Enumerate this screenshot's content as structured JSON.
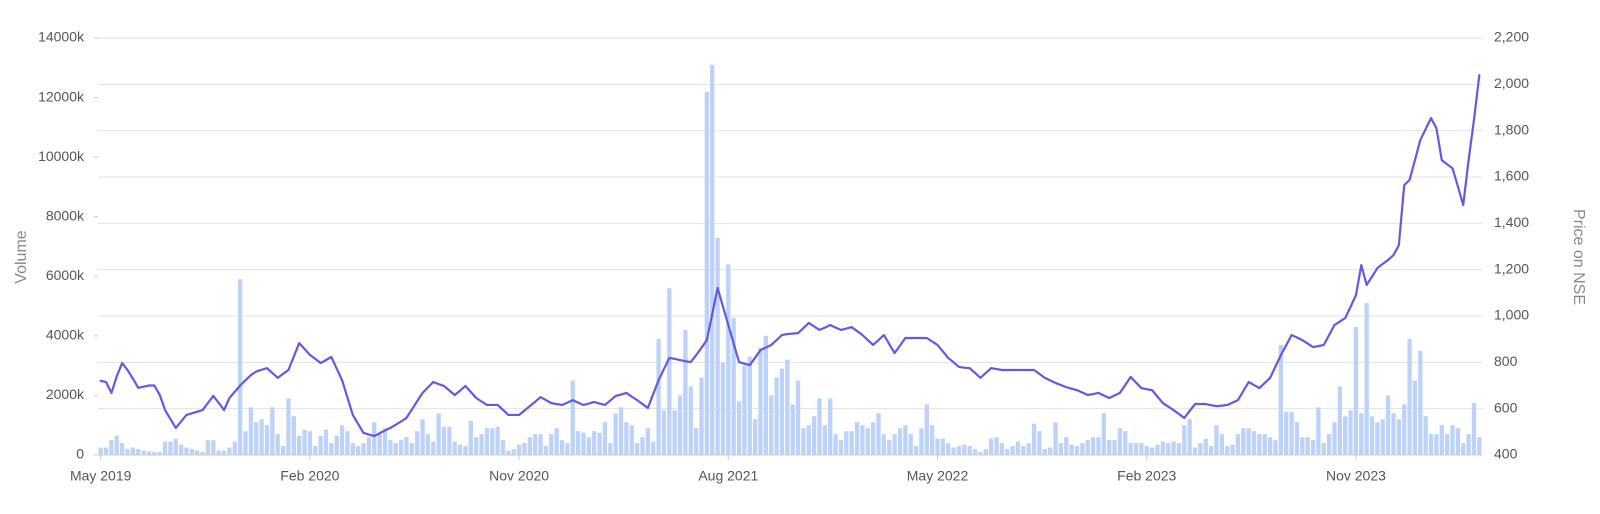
{
  "chart_data": {
    "type": "bar",
    "ylabel": "Volume",
    "y2label": "Price on NSE",
    "ylim": [
      0,
      14000
    ],
    "yticks": [
      0,
      {
        "value": 2000,
        "label": "2000k"
      },
      {
        "value": 4000,
        "label": "4000k"
      },
      {
        "value": 6000,
        "label": "6000k"
      },
      {
        "value": 8000,
        "label": "8000k"
      },
      {
        "value": 10000,
        "label": "10000k"
      },
      {
        "value": 12000,
        "label": "12000k"
      },
      {
        "value": 14000,
        "label": "14000k"
      }
    ],
    "y2lim": [
      400,
      2200
    ],
    "y2ticks": [
      400,
      600,
      800,
      {
        "value": 1000,
        "label": "1,000"
      },
      {
        "value": 1200,
        "label": "1,200"
      },
      {
        "value": 1400,
        "label": "1,400"
      },
      {
        "value": 1600,
        "label": "1,600"
      },
      {
        "value": 1800,
        "label": "1,800"
      },
      {
        "value": 2000,
        "label": "2,000"
      },
      {
        "value": 2200,
        "label": "2,200"
      }
    ],
    "grid": true,
    "categories": [
      "May 2019",
      null,
      null,
      null,
      null,
      null,
      null,
      null,
      null,
      null,
      null,
      null,
      null,
      null,
      null,
      null,
      null,
      null,
      null,
      null,
      null,
      null,
      null,
      null,
      null,
      null,
      null,
      null,
      null,
      null,
      null,
      null,
      null,
      null,
      null,
      null,
      null,
      null,
      null,
      "Feb 2020",
      null,
      null,
      null,
      null,
      null,
      null,
      null,
      null,
      null,
      null,
      null,
      null,
      null,
      null,
      null,
      null,
      null,
      null,
      null,
      null,
      null,
      null,
      null,
      null,
      null,
      null,
      null,
      null,
      null,
      null,
      null,
      null,
      null,
      null,
      null,
      null,
      null,
      null,
      "Nov 2020",
      null,
      null,
      null,
      null,
      null,
      null,
      null,
      null,
      null,
      null,
      null,
      null,
      null,
      null,
      null,
      null,
      null,
      null,
      null,
      null,
      null,
      null,
      null,
      null,
      null,
      null,
      null,
      null,
      null,
      null,
      null,
      null,
      null,
      null,
      null,
      null,
      null,
      null,
      "Aug 2021",
      null,
      null,
      null,
      null,
      null,
      null,
      null,
      null,
      null,
      null,
      null,
      null,
      null,
      null,
      null,
      null,
      null,
      null,
      null,
      null,
      null,
      null,
      null,
      null,
      null,
      null,
      null,
      null,
      null,
      null,
      null,
      null,
      null,
      null,
      null,
      null,
      null,
      null,
      "May 2022",
      null,
      null,
      null,
      null,
      null,
      null,
      null,
      null,
      null,
      null,
      null,
      null,
      null,
      null,
      null,
      null,
      null,
      null,
      null,
      null,
      null,
      null,
      null,
      null,
      null,
      null,
      null,
      null,
      null,
      null,
      null,
      null,
      null,
      null,
      null,
      null,
      null,
      null,
      "Feb 2023",
      null,
      null,
      null,
      null,
      null,
      null,
      null,
      null,
      null,
      null,
      null,
      null,
      null,
      null,
      null,
      null,
      null,
      null,
      null,
      null,
      null,
      null,
      null,
      null,
      null,
      null,
      null,
      null,
      null,
      null,
      null,
      null,
      null,
      null,
      null,
      null,
      null,
      null,
      "Nov 2023",
      null,
      null,
      null,
      null,
      null,
      null,
      null,
      null,
      null,
      null,
      null,
      null,
      null,
      null,
      null,
      null,
      null,
      null,
      null,
      null,
      null,
      null,
      null
    ],
    "series": [
      {
        "type": "bar",
        "color": "#bcd2f8",
        "values": [
          250,
          250,
          500,
          650,
          400,
          200,
          250,
          200,
          150,
          120,
          100,
          100,
          450,
          450,
          550,
          350,
          250,
          200,
          150,
          100,
          500,
          500,
          150,
          150,
          250,
          450,
          5900,
          800,
          1600,
          1100,
          1200,
          1000,
          1600,
          700,
          300,
          1900,
          1300,
          650,
          850,
          800,
          300,
          650,
          850,
          400,
          650,
          1000,
          800,
          400,
          300,
          400,
          600,
          1100,
          700,
          900,
          500,
          400,
          500,
          600,
          400,
          800,
          1200,
          700,
          450,
          1400,
          950,
          950,
          450,
          350,
          300,
          1150,
          600,
          700,
          900,
          900,
          950,
          500,
          150,
          200,
          350,
          400,
          600,
          700,
          700,
          300,
          700,
          900,
          500,
          400,
          2500,
          800,
          750,
          600,
          800,
          750,
          1100,
          400,
          1400,
          1600,
          1100,
          1000,
          400,
          600,
          900,
          450,
          3900,
          1500,
          5600,
          1500,
          2000,
          4200,
          2300,
          900,
          2600,
          12200,
          13100,
          7300,
          3100,
          6400,
          4600,
          1800,
          3000,
          3300,
          1200,
          3600,
          4000,
          2000,
          2600,
          2900,
          3200,
          1700,
          2500,
          900,
          1000,
          1300,
          1900,
          1000,
          1900,
          700,
          500,
          800,
          800,
          1100,
          1000,
          900,
          1100,
          1400,
          700,
          500,
          700,
          900,
          1000,
          700,
          300,
          900,
          1700,
          1000,
          550,
          550,
          400,
          250,
          300,
          350,
          300,
          200,
          100,
          200,
          550,
          600,
          400,
          200,
          300,
          450,
          300,
          400,
          1050,
          800,
          200,
          250,
          1100,
          400,
          600,
          350,
          300,
          400,
          500,
          600,
          600,
          1400,
          500,
          500,
          900,
          800,
          400,
          400,
          400,
          300,
          250,
          350,
          450,
          400,
          450,
          400,
          1000,
          1200,
          250,
          400,
          550,
          300,
          1000,
          700,
          300,
          350,
          700,
          900,
          900,
          800,
          700,
          700,
          600,
          500,
          3700,
          1450,
          1450,
          1100,
          600,
          600,
          500,
          1600,
          400,
          700,
          1100,
          2300,
          1300,
          1500,
          4300,
          1400,
          5100,
          1300,
          1100,
          1200,
          2000,
          1400,
          1200,
          1700,
          3900,
          2500,
          3500,
          1300,
          700,
          700,
          1000,
          700,
          1000,
          900,
          400,
          700,
          1750,
          600
        ]
      },
      {
        "type": "line",
        "axis": "y2",
        "color": "#6658e0",
        "values": [
          720,
          715,
          668,
          740,
          797,
          767,
          730,
          690,
          695,
          700,
          700,
          660,
          594,
          555,
          517,
          545,
          573,
          580,
          587,
          594,
          625,
          655,
          625,
          594,
          646,
          673,
          700,
          723,
          745,
          760,
          768,
          775,
          754,
          733,
          750,
          767,
          825,
          883,
          858,
          832,
          815,
          797,
          810,
          823,
          773,
          723,
          648,
          573,
          534,
          495,
          488,
          482,
          494,
          506,
          517,
          531,
          545,
          560,
          596,
          632,
          668,
          692,
          715,
          706,
          698,
          678,
          659,
          678,
          698,
          672,
          646,
          631,
          616,
          616,
          616,
          595,
          573,
          573,
          573,
          592,
          611,
          630,
          650,
          637,
          624,
          620,
          616,
          626,
          637,
          626,
          616,
          622,
          629,
          622,
          616,
          635,
          655,
          661,
          668,
          652,
          637,
          620,
          603,
          663,
          723,
          771,
          819,
          815,
          810,
          805,
          801,
          831,
          863,
          896,
          1008,
          1121,
          1041,
          961,
          881,
          801,
          794,
          788,
          820,
          853,
          864,
          875,
          896,
          918,
          922,
          924,
          926,
          948,
          970,
          955,
          940,
          950,
          961,
          950,
          940,
          946,
          952,
          935,
          918,
          896,
          875,
          896,
          918,
          879,
          840,
          872,
          905,
          905,
          905,
          905,
          905,
          890,
          875,
          847,
          819,
          800,
          780,
          777,
          775,
          754,
          733,
          754,
          775,
          771,
          767,
          767,
          767,
          767,
          767,
          767,
          767,
          750,
          733,
          722,
          711,
          702,
          693,
          686,
          680,
          670,
          659,
          663,
          668,
          657,
          646,
          657,
          668,
          702,
          737,
          713,
          689,
          684,
          680,
          652,
          624,
          609,
          594,
          577,
          560,
          590,
          620,
          620,
          620,
          615,
          611,
          613,
          616,
          626,
          637,
          676,
          715,
          702,
          689,
          711,
          733,
          782,
          831,
          874,
          918,
          907,
          896,
          881,
          866,
          870,
          875,
          918,
          961,
          976,
          991,
          1040,
          1090,
          1220,
          1134,
          1170,
          1207,
          1225,
          1242,
          1263,
          1306,
          1565,
          1587,
          1673,
          1760,
          1807,
          1854,
          1811,
          1673,
          1655,
          1638,
          1560,
          1479,
          1673,
          1846,
          2040
        ]
      }
    ]
  }
}
